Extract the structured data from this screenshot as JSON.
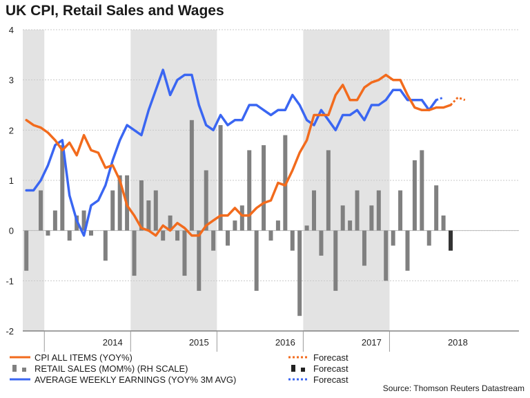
{
  "chart_data": {
    "type": "line+bar",
    "title": "UK CPI, Retail Sales and Wages",
    "source": "Source: Thomson Reuters Datastream",
    "y_ticks": [
      "4",
      "3",
      "2",
      "1",
      "0",
      "-1",
      "-2"
    ],
    "ylim": [
      -2,
      4
    ],
    "x_labels": [
      "2014",
      "2015",
      "2016",
      "2017",
      "2018"
    ],
    "x_label_months": [
      12.5,
      24.5,
      36.5,
      48.5,
      60.5
    ],
    "x_range": [
      0,
      69
    ],
    "shaded_regions": [
      [
        0,
        3
      ],
      [
        15,
        27
      ],
      [
        39,
        51
      ]
    ],
    "colors": {
      "cpi": "#f26b1d",
      "retail": "#808080",
      "retail_forecast": "#333333",
      "awe": "#3a66f2"
    },
    "cpi": {
      "name": "CPI ALL ITEMS (YOY%)",
      "start_month": 0,
      "values": [
        2.2,
        2.1,
        2.05,
        1.95,
        1.8,
        1.6,
        1.75,
        1.5,
        1.9,
        1.6,
        1.55,
        1.25,
        1.3,
        1.0,
        0.5,
        0.3,
        0.05,
        0.0,
        -0.1,
        0.1,
        0.0,
        0.15,
        0.05,
        -0.1,
        -0.1,
        0.1,
        0.2,
        0.3,
        0.3,
        0.45,
        0.3,
        0.3,
        0.45,
        0.55,
        0.6,
        0.95,
        0.9,
        1.2,
        1.55,
        1.8,
        2.3,
        2.3,
        2.3,
        2.7,
        2.9,
        2.6,
        2.6,
        2.85,
        2.95,
        3.0,
        3.1,
        3.0,
        3.0,
        2.7,
        2.45,
        2.4,
        2.4,
        2.45,
        2.45,
        2.5
      ]
    },
    "cpi_forecast": {
      "name": "Forecast",
      "start_month": 59,
      "values": [
        2.5,
        2.65,
        2.6
      ]
    },
    "awe": {
      "name": "AVERAGE WEEKLY EARNINGS (YOY% 3M AVG)",
      "start_month": 0,
      "values": [
        0.8,
        0.8,
        1.0,
        1.3,
        1.7,
        1.8,
        0.7,
        0.2,
        -0.1,
        0.5,
        0.6,
        0.9,
        1.4,
        1.8,
        2.1,
        2.0,
        1.9,
        2.4,
        2.8,
        3.2,
        2.7,
        3.0,
        3.1,
        3.1,
        2.5,
        2.1,
        2.0,
        2.3,
        2.1,
        2.2,
        2.2,
        2.5,
        2.5,
        2.4,
        2.3,
        2.4,
        2.4,
        2.7,
        2.5,
        2.2,
        2.1,
        2.4,
        2.2,
        2.0,
        2.3,
        2.3,
        2.4,
        2.2,
        2.5,
        2.5,
        2.6,
        2.8,
        2.8,
        2.6,
        2.6,
        2.6,
        2.4,
        2.6
      ]
    },
    "awe_forecast": {
      "name": "Forecast",
      "start_month": 57,
      "values": [
        2.6,
        2.65
      ]
    },
    "retail": {
      "name": "RETAIL SALES (MOM%) (RH SCALE)",
      "start_month": 0,
      "values": [
        -0.8,
        null,
        0.8,
        -0.1,
        0.4,
        1.7,
        -0.2,
        0.3,
        0.4,
        -0.1,
        null,
        -0.6,
        0.8,
        1.1,
        1.1,
        -0.9,
        1.0,
        0.6,
        0.8,
        -0.2,
        0.3,
        -0.2,
        -0.9,
        2.2,
        -1.2,
        1.2,
        -0.4,
        2.1,
        -0.3,
        0.2,
        0.5,
        1.6,
        -1.2,
        1.7,
        -0.2,
        0.2,
        1.9,
        -0.4,
        -1.7,
        0.1,
        0.8,
        -0.5,
        1.6,
        -1.2,
        0.5,
        0.2,
        0.8,
        -0.7,
        0.5,
        0.8,
        -1.0,
        -0.3,
        0.8,
        -0.8,
        1.4,
        1.6,
        -0.3,
        0.9,
        0.3
      ]
    },
    "retail_forecast": {
      "name": "Forecast",
      "month": 59,
      "value": -0.4
    }
  }
}
